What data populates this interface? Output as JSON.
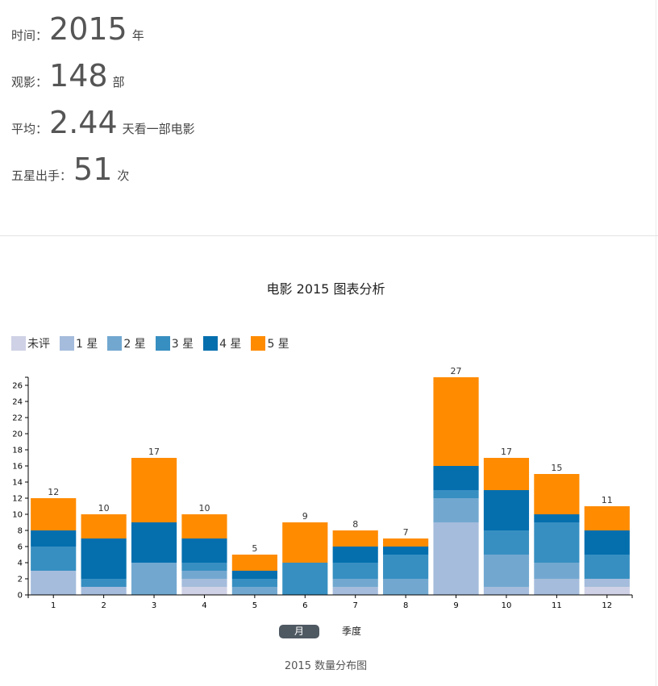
{
  "stats": [
    {
      "label": "时间：",
      "value": "2015",
      "unit": "年"
    },
    {
      "label": "观影：",
      "value": "148",
      "unit": "部"
    },
    {
      "label": "平均：",
      "value": "2.44",
      "unit": "天看一部电影"
    },
    {
      "label": "五星出手：",
      "value": "51",
      "unit": "次"
    }
  ],
  "tabs": {
    "month": "月",
    "quarter": "季度"
  },
  "caption": "2015 数量分布图",
  "chart_data": {
    "type": "bar",
    "stacked": true,
    "title": "电影 2015 图表分析",
    "categories": [
      "1",
      "2",
      "3",
      "4",
      "5",
      "6",
      "7",
      "8",
      "9",
      "10",
      "11",
      "12"
    ],
    "series": [
      {
        "name": "未评",
        "color": "#cfd1e6",
        "values": [
          0,
          0,
          0,
          1,
          0,
          0,
          0,
          0,
          0,
          0,
          0,
          1
        ]
      },
      {
        "name": "1 星",
        "color": "#a5bcdc",
        "values": [
          3,
          1,
          0,
          1,
          0,
          0,
          1,
          0,
          9,
          1,
          2,
          1
        ]
      },
      {
        "name": "2 星",
        "color": "#72a8d0",
        "values": [
          0,
          0,
          4,
          1,
          1,
          0,
          1,
          2,
          3,
          4,
          2,
          0
        ]
      },
      {
        "name": "3 星",
        "color": "#378fc1",
        "values": [
          3,
          1,
          0,
          1,
          1,
          4,
          2,
          3,
          1,
          3,
          5,
          3
        ]
      },
      {
        "name": "4 星",
        "color": "#056fae",
        "values": [
          2,
          5,
          5,
          3,
          1,
          0,
          2,
          1,
          3,
          5,
          1,
          3
        ]
      },
      {
        "name": "5 星",
        "color": "#ff8b00",
        "values": [
          4,
          3,
          8,
          3,
          2,
          5,
          2,
          1,
          11,
          4,
          5,
          3
        ]
      }
    ],
    "totals": [
      12,
      10,
      17,
      10,
      5,
      9,
      8,
      7,
      27,
      17,
      15,
      11
    ],
    "ylim": [
      0,
      27
    ],
    "yticks": [
      0,
      2,
      4,
      6,
      8,
      10,
      12,
      14,
      16,
      18,
      20,
      22,
      24,
      26
    ],
    "legend": "top-left",
    "grid": false
  }
}
